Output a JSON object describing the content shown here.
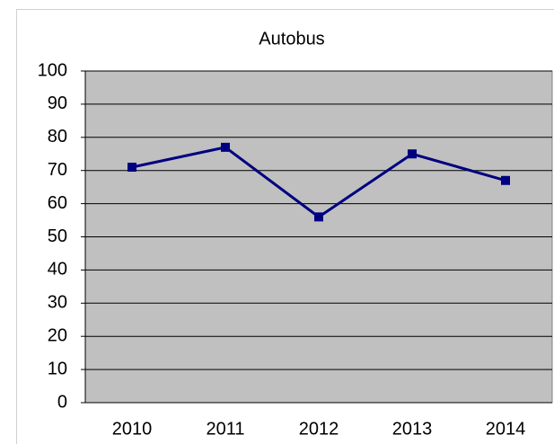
{
  "chart_data": {
    "type": "line",
    "title": "Autobus",
    "categories": [
      "2010",
      "2011",
      "2012",
      "2013",
      "2014"
    ],
    "values": [
      71,
      77,
      56,
      75,
      67
    ],
    "color": "#000080",
    "ylim": [
      0,
      100
    ],
    "yticks": [
      0,
      10,
      20,
      30,
      40,
      50,
      60,
      70,
      80,
      90,
      100
    ],
    "grid": true
  }
}
